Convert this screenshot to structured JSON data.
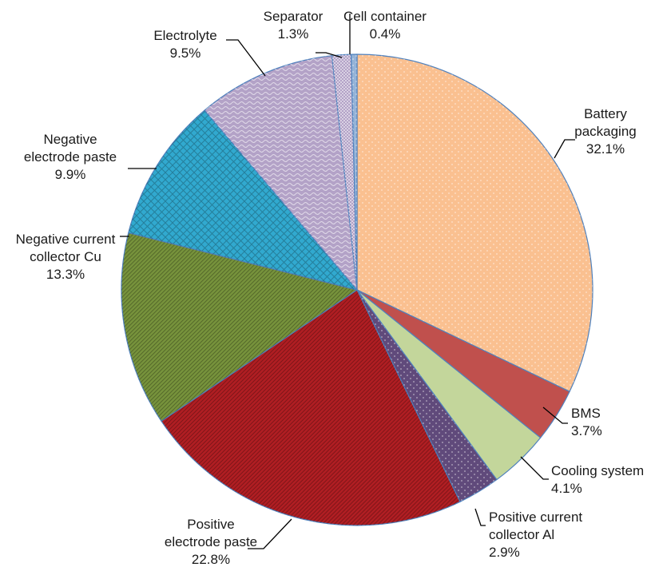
{
  "chart_data": {
    "type": "pie",
    "title": "",
    "start_angle_deg": 0,
    "direction": "clockwise",
    "slices": [
      {
        "name": "Battery packaging",
        "label_lines": [
          "Battery",
          "packaging"
        ],
        "value": 32.1,
        "value_label": "32.1%",
        "color": "#fac090",
        "pattern": "dots"
      },
      {
        "name": "BMS",
        "label_lines": [
          "BMS"
        ],
        "value": 3.7,
        "value_label": "3.7%",
        "color": "#c0504d",
        "pattern": "solid"
      },
      {
        "name": "Cooling system",
        "label_lines": [
          "Cooling system"
        ],
        "value": 4.1,
        "value_label": "4.1%",
        "color": "#c3d69b",
        "pattern": "solid"
      },
      {
        "name": "Positive current collector Al",
        "label_lines": [
          "Positive current",
          "collector Al"
        ],
        "value": 2.9,
        "value_label": "2.9%",
        "color": "#604a7b",
        "pattern": "dots"
      },
      {
        "name": "Positive electrode paste",
        "label_lines": [
          "Positive",
          "electrode paste"
        ],
        "value": 22.8,
        "value_label": "22.8%",
        "color": "#b11e23",
        "pattern": "diagonal"
      },
      {
        "name": "Negative current collector Cu",
        "label_lines": [
          "Negative current",
          "collector Cu"
        ],
        "value": 13.3,
        "value_label": "13.3%",
        "color": "#77933c",
        "pattern": "diagonal"
      },
      {
        "name": "Negative electrode paste",
        "label_lines": [
          "Negative",
          "electrode paste"
        ],
        "value": 9.9,
        "value_label": "9.9%",
        "color": "#31a9cf",
        "pattern": "crosshatch"
      },
      {
        "name": "Electrolyte",
        "label_lines": [
          "Electrolyte"
        ],
        "value": 9.5,
        "value_label": "9.5%",
        "color": "#b3a2c7",
        "pattern": "wave"
      },
      {
        "name": "Separator",
        "label_lines": [
          "Separator"
        ],
        "value": 1.3,
        "value_label": "1.3%",
        "color": "#b3a2c7",
        "pattern": "checker"
      },
      {
        "name": "Cell container",
        "label_lines": [
          "Cell container"
        ],
        "value": 0.4,
        "value_label": "0.4%",
        "color": "#95b3d7",
        "pattern": "dots"
      }
    ]
  }
}
